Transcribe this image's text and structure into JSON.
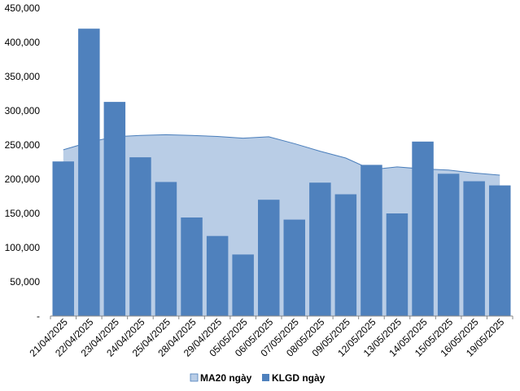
{
  "chart_data": {
    "type": "bar",
    "categories": [
      "21/04/2025",
      "22/04/2025",
      "23/04/2025",
      "24/04/2025",
      "25/04/2025",
      "28/04/2025",
      "29/04/2025",
      "05/05/2025",
      "06/05/2025",
      "07/05/2025",
      "08/05/2025",
      "09/05/2025",
      "12/05/2025",
      "13/05/2025",
      "14/05/2025",
      "15/05/2025",
      "16/05/2025",
      "19/05/2025"
    ],
    "series": [
      {
        "name": "MA20 ngày",
        "kind": "area",
        "color": "#b9cde6",
        "edge_color": "#4a7ebb",
        "values": [
          243000,
          254000,
          262000,
          264000,
          265000,
          264000,
          262500,
          260000,
          262000,
          252000,
          241000,
          231000,
          214000,
          218000,
          215000,
          213500,
          209000,
          206000
        ]
      },
      {
        "name": "KLGD ngày",
        "kind": "bar",
        "color": "#4f81bd",
        "values": [
          226000,
          420000,
          313000,
          232000,
          196000,
          144000,
          117000,
          90000,
          170000,
          141000,
          195000,
          178000,
          221000,
          150000,
          255000,
          208000,
          197000,
          191000
        ]
      }
    ],
    "y_ticks": [
      "-",
      "50,000",
      "100,000",
      "150,000",
      "200,000",
      "250,000",
      "300,000",
      "350,000",
      "400,000",
      "450,000"
    ],
    "ylim": [
      0,
      450000
    ],
    "grid": false,
    "legend_position": "bottom-center"
  }
}
